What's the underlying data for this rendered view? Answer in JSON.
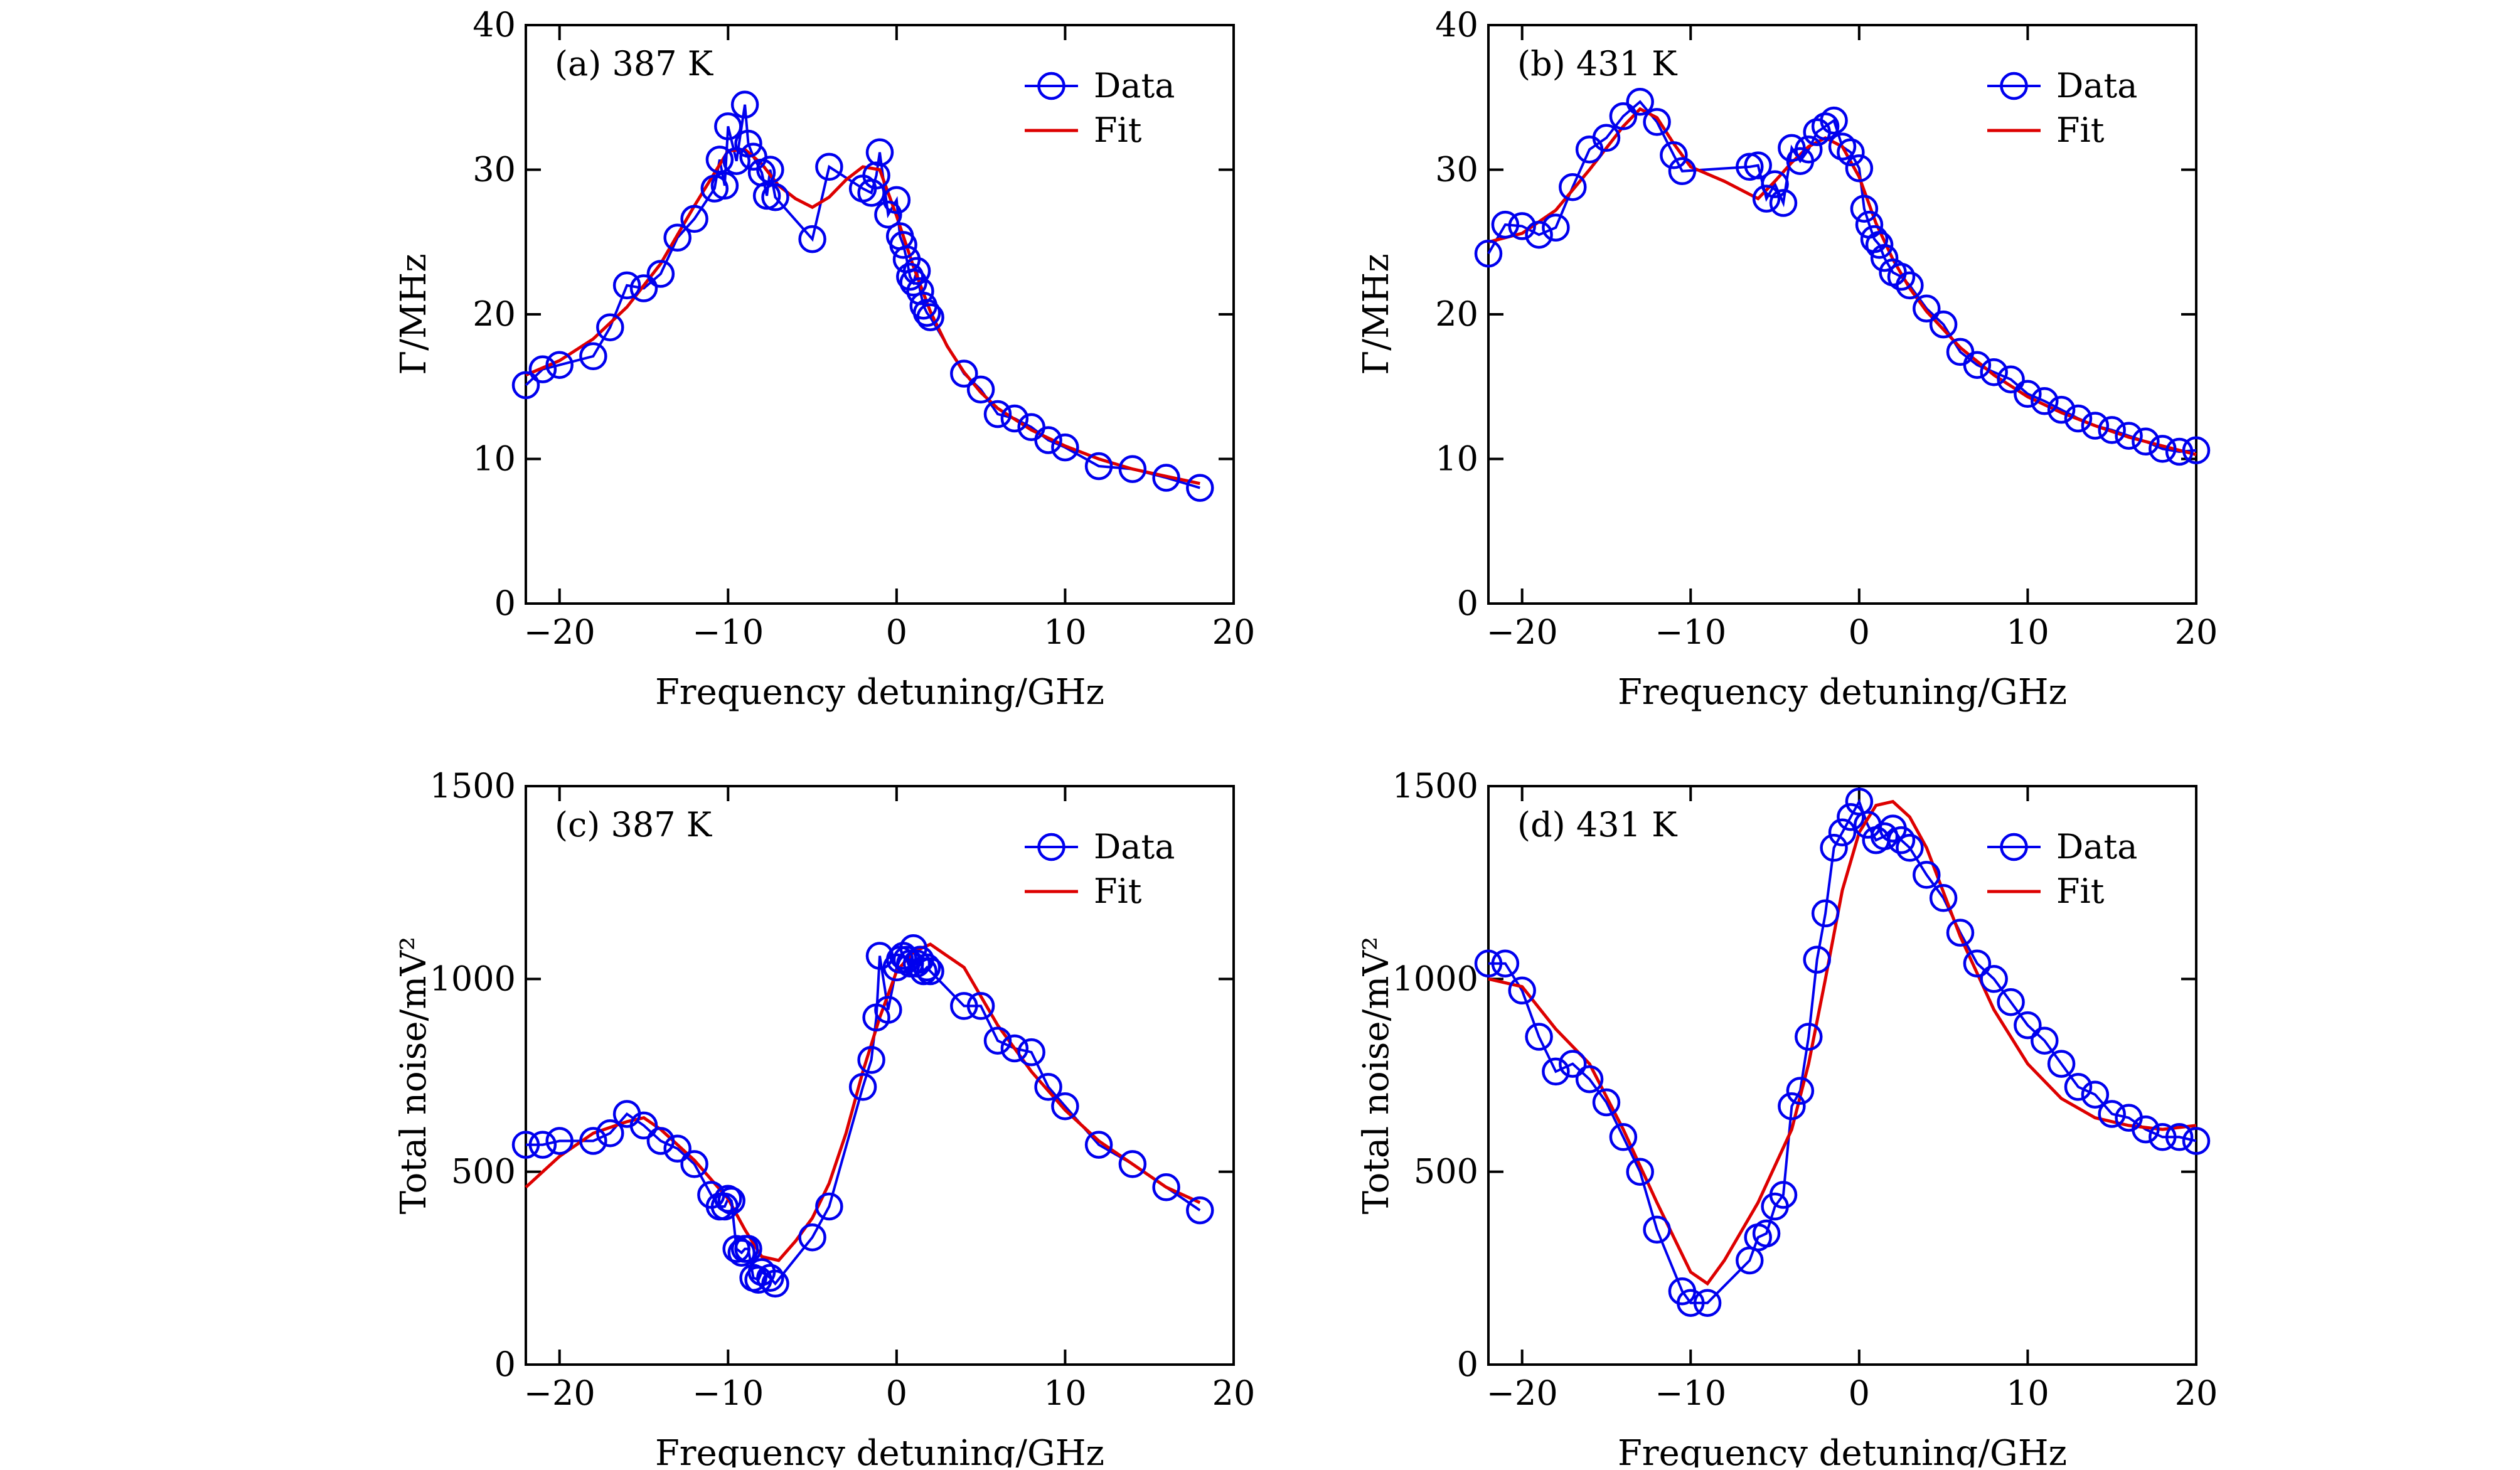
{
  "chart_data": [
    {
      "type": "line",
      "panel_label": "(a) 387 K",
      "xlabel": "Frequency detuning/GHz",
      "ylabel": "Γ/MHz",
      "xlim": [
        -22,
        20
      ],
      "ylim": [
        0,
        40
      ],
      "xticks": [
        -20,
        -10,
        0,
        10,
        20
      ],
      "yticks": [
        0,
        10,
        20,
        30,
        40
      ],
      "x_tick_labels": [
        "−20",
        "−10",
        "0",
        "10",
        "20"
      ],
      "y_tick_labels": [
        "0",
        "10",
        "20",
        "30",
        "40"
      ],
      "legend": {
        "position": "top-right",
        "entries": [
          "Data",
          "Fit"
        ]
      },
      "series": [
        {
          "name": "Data",
          "color": "#0000ee",
          "marker": "circle",
          "x": [
            -22,
            -21,
            -20,
            -18,
            -17,
            -16,
            -15,
            -14,
            -13,
            -12,
            -10.8,
            -10.5,
            -10.2,
            -10,
            -9.5,
            -9,
            -8.8,
            -8.5,
            -8,
            -7.7,
            -7.5,
            -7.2,
            -5,
            -4,
            -2,
            -1.5,
            -1.2,
            -1,
            -0.5,
            0,
            0.2,
            0.4,
            0.6,
            0.8,
            1,
            1.2,
            1.4,
            1.6,
            1.8,
            2,
            4,
            5,
            6,
            7,
            8,
            9,
            10,
            12,
            14,
            16,
            18
          ],
          "y": [
            15.1,
            16.2,
            16.5,
            17.1,
            19.1,
            22.0,
            21.8,
            22.8,
            25.3,
            26.6,
            28.7,
            30.7,
            28.9,
            33.0,
            30.6,
            34.5,
            31.8,
            30.9,
            29.8,
            28.2,
            30.0,
            28.1,
            25.2,
            30.2,
            28.7,
            28.4,
            29.6,
            31.2,
            26.9,
            27.9,
            25.4,
            24.8,
            23.8,
            22.6,
            22.2,
            23.0,
            21.6,
            20.6,
            20.1,
            19.8,
            15.9,
            14.8,
            13.1,
            12.8,
            12.2,
            11.3,
            10.8,
            9.5,
            9.3,
            8.7,
            8.0
          ]
        },
        {
          "name": "Fit",
          "color": "#dd0000",
          "x": [
            -22,
            -20,
            -18,
            -16,
            -14,
            -12,
            -10,
            -9,
            -8,
            -7,
            -6,
            -5,
            -4,
            -3,
            -2,
            -1,
            0,
            1,
            2,
            3,
            4,
            5,
            6,
            8,
            10,
            12,
            14,
            16,
            18
          ],
          "y": [
            15.8,
            16.8,
            18.3,
            20.5,
            23.5,
            27.5,
            31.3,
            31.4,
            30.4,
            28.9,
            28.0,
            27.4,
            28.1,
            29.3,
            30.2,
            30.0,
            26.8,
            23.3,
            20.2,
            17.8,
            16.0,
            14.6,
            13.5,
            12.0,
            10.9,
            10.0,
            9.3,
            8.8,
            8.3
          ]
        }
      ]
    },
    {
      "type": "line",
      "panel_label": "(b) 431 K",
      "xlabel": "Frequency detuning/GHz",
      "ylabel": "Γ/MHz",
      "xlim": [
        -22,
        20
      ],
      "ylim": [
        0,
        40
      ],
      "xticks": [
        -20,
        -10,
        0,
        10,
        20
      ],
      "yticks": [
        0,
        10,
        20,
        30,
        40
      ],
      "x_tick_labels": [
        "−20",
        "−10",
        "0",
        "10",
        "20"
      ],
      "y_tick_labels": [
        "0",
        "10",
        "20",
        "30",
        "40"
      ],
      "legend": {
        "position": "top-right",
        "entries": [
          "Data",
          "Fit"
        ]
      },
      "series": [
        {
          "name": "Data",
          "color": "#0000ee",
          "marker": "circle",
          "x": [
            -22,
            -21,
            -20,
            -19,
            -18,
            -17,
            -16,
            -15,
            -14,
            -13,
            -12,
            -11,
            -10.5,
            -6.5,
            -6,
            -5.5,
            -5,
            -4.5,
            -4,
            -3.5,
            -3,
            -2.5,
            -2,
            -1.5,
            -1,
            -0.5,
            0,
            0.3,
            0.6,
            0.9,
            1.2,
            1.5,
            2,
            2.5,
            3,
            4,
            5,
            6,
            7,
            8,
            9,
            10,
            11,
            12,
            13,
            14,
            15,
            16,
            17,
            18,
            19,
            20
          ],
          "y": [
            24.2,
            26.2,
            26.1,
            25.5,
            26.0,
            28.8,
            31.4,
            32.2,
            33.7,
            34.7,
            33.3,
            31.0,
            29.9,
            30.2,
            30.3,
            28.0,
            29.0,
            27.7,
            31.5,
            30.6,
            31.4,
            32.6,
            33.0,
            33.4,
            31.6,
            31.2,
            30.1,
            27.3,
            26.2,
            25.2,
            24.8,
            23.9,
            22.9,
            22.6,
            22.0,
            20.4,
            19.3,
            17.4,
            16.5,
            16.0,
            15.5,
            14.5,
            14.0,
            13.4,
            12.8,
            12.3,
            12.0,
            11.6,
            11.2,
            10.7,
            10.5,
            10.6
          ]
        },
        {
          "name": "Fit",
          "color": "#dd0000",
          "x": [
            -22,
            -20,
            -18,
            -16,
            -14,
            -13,
            -12,
            -11,
            -10,
            -8,
            -6,
            -5,
            -4,
            -3,
            -2,
            -1,
            0,
            1,
            2,
            3,
            4,
            6,
            8,
            10,
            12,
            14,
            16,
            18,
            20
          ],
          "y": [
            25.0,
            25.6,
            27.2,
            30.0,
            33.0,
            34.2,
            33.6,
            31.8,
            30.2,
            29.2,
            28.0,
            29.2,
            30.5,
            31.6,
            32.2,
            31.6,
            29.5,
            26.3,
            23.8,
            21.8,
            20.2,
            17.7,
            15.8,
            14.3,
            13.2,
            12.3,
            11.5,
            10.9,
            10.3
          ]
        }
      ]
    },
    {
      "type": "line",
      "panel_label": "(c) 387 K",
      "xlabel": "Frequency detuning/GHz",
      "ylabel": "Total noise/mV²",
      "xlim": [
        -22,
        20
      ],
      "ylim": [
        0,
        1500
      ],
      "xticks": [
        -20,
        -10,
        0,
        10,
        20
      ],
      "yticks": [
        0,
        500,
        1000,
        1500
      ],
      "x_tick_labels": [
        "−20",
        "−10",
        "0",
        "10",
        "20"
      ],
      "y_tick_labels": [
        "0",
        "500",
        "1000",
        "1500"
      ],
      "legend": {
        "position": "top-right",
        "entries": [
          "Data",
          "Fit"
        ]
      },
      "series": [
        {
          "name": "Data",
          "color": "#0000ee",
          "marker": "circle",
          "x": [
            -22,
            -21,
            -20,
            -18,
            -17,
            -16,
            -15,
            -14,
            -13,
            -12,
            -11,
            -10.5,
            -10.2,
            -10,
            -9.8,
            -9.5,
            -9.2,
            -9,
            -8.8,
            -8.5,
            -8.2,
            -8,
            -7.5,
            -7.2,
            -5,
            -4,
            -2,
            -1.5,
            -1.2,
            -1,
            -0.5,
            0,
            0.2,
            0.4,
            0.6,
            0.8,
            1,
            1.2,
            1.4,
            1.6,
            1.8,
            2,
            4,
            5,
            6,
            7,
            8,
            9,
            10,
            12,
            14,
            16,
            18
          ],
          "y": [
            570,
            570,
            580,
            580,
            600,
            650,
            620,
            580,
            560,
            520,
            440,
            410,
            410,
            430,
            425,
            300,
            290,
            300,
            300,
            225,
            220,
            240,
            225,
            210,
            330,
            410,
            720,
            790,
            900,
            1060,
            920,
            1030,
            1050,
            1060,
            1050,
            1040,
            1080,
            1040,
            1050,
            1020,
            1030,
            1020,
            930,
            930,
            840,
            820,
            810,
            720,
            670,
            570,
            520,
            460,
            400
          ]
        },
        {
          "name": "Fit",
          "color": "#dd0000",
          "x": [
            -22,
            -20,
            -18,
            -16,
            -15,
            -14,
            -12,
            -10,
            -9,
            -8,
            -7,
            -6,
            -5,
            -4,
            -3,
            -2,
            -1,
            0,
            1,
            2,
            3,
            4,
            6,
            8,
            10,
            12,
            14,
            16,
            18
          ],
          "y": [
            460,
            540,
            600,
            630,
            640,
            610,
            530,
            430,
            350,
            280,
            270,
            320,
            380,
            470,
            600,
            760,
            900,
            1020,
            1070,
            1090,
            1060,
            1030,
            880,
            760,
            660,
            580,
            520,
            460,
            420
          ]
        }
      ]
    },
    {
      "type": "line",
      "panel_label": "(d) 431 K",
      "xlabel": "Frequency detuning/GHz",
      "ylabel": "Total noise/mV²",
      "xlim": [
        -22,
        20
      ],
      "ylim": [
        0,
        1500
      ],
      "xticks": [
        -20,
        -10,
        0,
        10,
        20
      ],
      "yticks": [
        0,
        500,
        1000,
        1500
      ],
      "x_tick_labels": [
        "−20",
        "−10",
        "0",
        "10",
        "20"
      ],
      "y_tick_labels": [
        "0",
        "500",
        "1000",
        "1500"
      ],
      "legend": {
        "position": "top-right",
        "entries": [
          "Data",
          "Fit"
        ]
      },
      "series": [
        {
          "name": "Data",
          "color": "#0000ee",
          "marker": "circle",
          "x": [
            -22,
            -21,
            -20,
            -19,
            -18,
            -17,
            -16,
            -15,
            -14,
            -13,
            -12,
            -10.5,
            -10,
            -9,
            -6.5,
            -6,
            -5.5,
            -5,
            -4.5,
            -4,
            -3.5,
            -3,
            -2.5,
            -2,
            -1.5,
            -1,
            -0.5,
            0,
            0.5,
            1,
            1.5,
            2,
            2.5,
            3,
            4,
            5,
            6,
            7,
            8,
            9,
            10,
            11,
            12,
            13,
            14,
            15,
            16,
            17,
            18,
            19,
            20
          ],
          "y": [
            1040,
            1040,
            970,
            850,
            760,
            780,
            740,
            680,
            590,
            500,
            350,
            190,
            160,
            160,
            270,
            330,
            340,
            410,
            440,
            670,
            710,
            850,
            1050,
            1170,
            1340,
            1380,
            1420,
            1460,
            1400,
            1360,
            1370,
            1390,
            1360,
            1340,
            1270,
            1210,
            1120,
            1040,
            1000,
            940,
            880,
            840,
            780,
            720,
            700,
            650,
            640,
            610,
            590,
            590,
            580
          ]
        },
        {
          "name": "Fit",
          "color": "#dd0000",
          "x": [
            -22,
            -20,
            -18,
            -16,
            -14,
            -12,
            -10,
            -9,
            -8,
            -6,
            -4,
            -3,
            -2,
            -1,
            0,
            1,
            2,
            3,
            4,
            6,
            8,
            10,
            12,
            14,
            16,
            18,
            20
          ],
          "y": [
            1000,
            980,
            870,
            780,
            610,
            420,
            240,
            210,
            270,
            420,
            610,
            780,
            1000,
            1230,
            1380,
            1450,
            1460,
            1420,
            1340,
            1110,
            920,
            780,
            690,
            640,
            620,
            610,
            620
          ]
        }
      ]
    }
  ]
}
